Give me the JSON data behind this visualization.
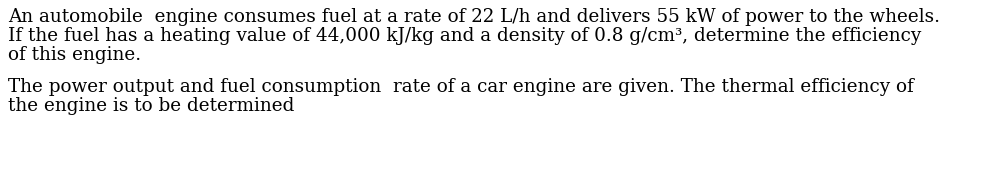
{
  "background_color": "#ffffff",
  "paragraph1_line1": "An automobile  engine consumes fuel at a rate of 22 L/h and delivers 55 kW of power to the wheels.",
  "paragraph1_line2": "If the fuel has a heating value of 44,000 kJ/kg and a density of 0.8 g/cm³, determine the efficiency",
  "paragraph1_line3": "of this engine.",
  "paragraph2_line1": "The power output and fuel consumption  rate of a car engine are given. The thermal efficiency of",
  "paragraph2_line2": "the engine is to be determined",
  "font_size": 13.2,
  "font_family": "serif",
  "text_color": "#000000",
  "fig_width": 9.84,
  "fig_height": 1.79,
  "dpi": 100
}
